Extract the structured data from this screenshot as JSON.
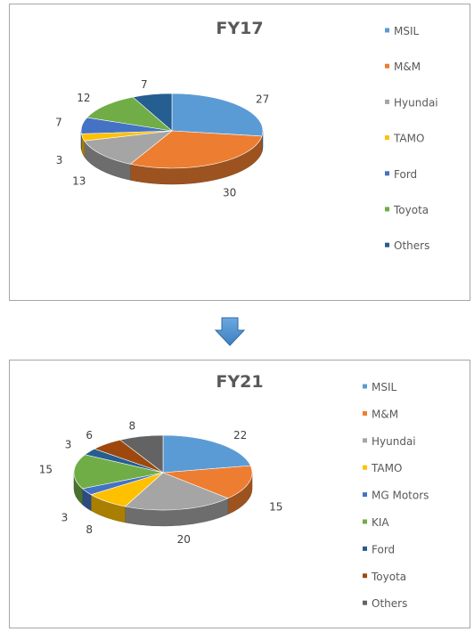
{
  "chart_data": [
    {
      "type": "pie",
      "title": "FY17",
      "categories": [
        "MSIL",
        "M&M",
        "Hyundai",
        "TAMO",
        "Ford",
        "Toyota",
        "Others"
      ],
      "values": [
        27,
        30,
        13,
        3,
        7,
        12,
        7
      ],
      "colors": [
        "#5b9bd5",
        "#ed7d31",
        "#a5a5a5",
        "#ffc000",
        "#4472c4",
        "#70ad47",
        "#255e91"
      ],
      "legend": "right",
      "style": "3d"
    },
    {
      "type": "pie",
      "title": "FY21",
      "categories": [
        "MSIL",
        "M&M",
        "Hyundai",
        "TAMO",
        "MG Motors",
        "KIA",
        "Ford",
        "Toyota",
        "Others"
      ],
      "values": [
        22,
        15,
        20,
        8,
        3,
        15,
        3,
        6,
        8
      ],
      "colors": [
        "#5b9bd5",
        "#ed7d31",
        "#a5a5a5",
        "#ffc000",
        "#4472c4",
        "#70ad47",
        "#255e91",
        "#9e480e",
        "#636363"
      ],
      "legend": "right",
      "style": "3d"
    }
  ],
  "arrow_icon": "down-arrow-icon",
  "arrow_color": "#5b9bd5"
}
